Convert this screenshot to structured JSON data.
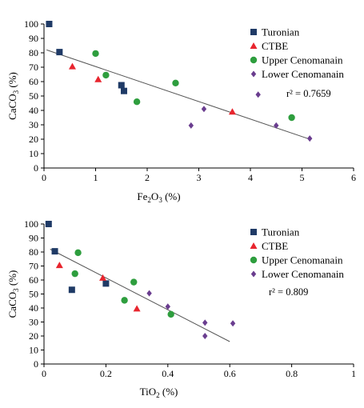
{
  "chart_data": [
    {
      "type": "scatter",
      "xlabel": "Fe2O3 (%)",
      "xlabel_main": "Fe",
      "xlabel_sub1": "2",
      "xlabel_mid": "O",
      "xlabel_sub2": "3",
      "xlabel_tail": " (%)",
      "ylabel": "CaCO3 (%)",
      "ylabel_main": "CaCO",
      "ylabel_sub": "3",
      "ylabel_tail": " (%)",
      "xlim": [
        0,
        6
      ],
      "ylim": [
        0,
        100
      ],
      "xticks": [
        "0",
        "1",
        "2",
        "3",
        "4",
        "5",
        "6"
      ],
      "yticks": [
        "0",
        "10",
        "20",
        "30",
        "40",
        "50",
        "60",
        "70",
        "80",
        "90",
        "100"
      ],
      "annotation": "r² = 0.7659",
      "legend_position": "top-right",
      "trendline": [
        [
          0.05,
          82
        ],
        [
          5.15,
          20
        ]
      ],
      "series": [
        {
          "name": "Turonian",
          "marker": "square",
          "color": "#1F3A66",
          "points": [
            [
              0.1,
              100
            ],
            [
              0.3,
              80.5
            ],
            [
              1.5,
              57.5
            ],
            [
              1.55,
              53.5
            ]
          ]
        },
        {
          "name": "CTBE",
          "marker": "triangle",
          "color": "#E8252E",
          "points": [
            [
              0.55,
              70.5
            ],
            [
              1.05,
              61.5
            ],
            [
              3.65,
              39
            ]
          ]
        },
        {
          "name": "Upper Cenomanain",
          "marker": "circle",
          "color": "#2E9E3E",
          "points": [
            [
              1.0,
              79.5
            ],
            [
              1.2,
              64.5
            ],
            [
              1.8,
              46
            ],
            [
              2.55,
              59
            ],
            [
              4.8,
              35
            ]
          ]
        },
        {
          "name": "Lower Cenomanain",
          "marker": "diamond",
          "color": "#6A3D8F",
          "points": [
            [
              2.85,
              29.5
            ],
            [
              3.1,
              41
            ],
            [
              4.15,
              51
            ],
            [
              4.5,
              29.5
            ],
            [
              5.15,
              20.5
            ]
          ]
        }
      ]
    },
    {
      "type": "scatter",
      "xlabel": "TiO2 (%)",
      "xlabel_main": "TiO",
      "xlabel_sub1": "2",
      "xlabel_tail": " (%)",
      "ylabel": "CaCO3 (%)",
      "ylabel_main": "CaCO",
      "ylabel_sub": "3",
      "ylabel_tail": " (%)",
      "xlim": [
        0,
        1
      ],
      "ylim": [
        0,
        100
      ],
      "xticks": [
        "0",
        "0.2",
        "0.4",
        "0.6",
        "0.8",
        "1"
      ],
      "yticks": [
        "0",
        "10",
        "20",
        "30",
        "40",
        "50",
        "60",
        "70",
        "80",
        "90",
        "100"
      ],
      "annotation": "r² = 0.809",
      "legend_position": "top-right",
      "trendline": [
        [
          0.02,
          82
        ],
        [
          0.6,
          16
        ]
      ],
      "series": [
        {
          "name": "Turonian",
          "marker": "square",
          "color": "#1F3A66",
          "points": [
            [
              0.015,
              100
            ],
            [
              0.035,
              80.5
            ],
            [
              0.09,
              53
            ],
            [
              0.2,
              57.5
            ]
          ]
        },
        {
          "name": "CTBE",
          "marker": "triangle",
          "color": "#E8252E",
          "points": [
            [
              0.05,
              70.5
            ],
            [
              0.19,
              61.5
            ],
            [
              0.3,
              39.5
            ]
          ]
        },
        {
          "name": "Upper Cenomanain",
          "marker": "circle",
          "color": "#2E9E3E",
          "points": [
            [
              0.11,
              79.5
            ],
            [
              0.1,
              64.5
            ],
            [
              0.26,
              45.5
            ],
            [
              0.29,
              58.5
            ],
            [
              0.41,
              35.5
            ]
          ]
        },
        {
          "name": "Lower Cenomanain",
          "marker": "diamond",
          "color": "#6A3D8F",
          "points": [
            [
              0.34,
              50.5
            ],
            [
              0.4,
              41
            ],
            [
              0.52,
              29.5
            ],
            [
              0.52,
              20
            ],
            [
              0.61,
              29
            ]
          ]
        }
      ]
    }
  ]
}
